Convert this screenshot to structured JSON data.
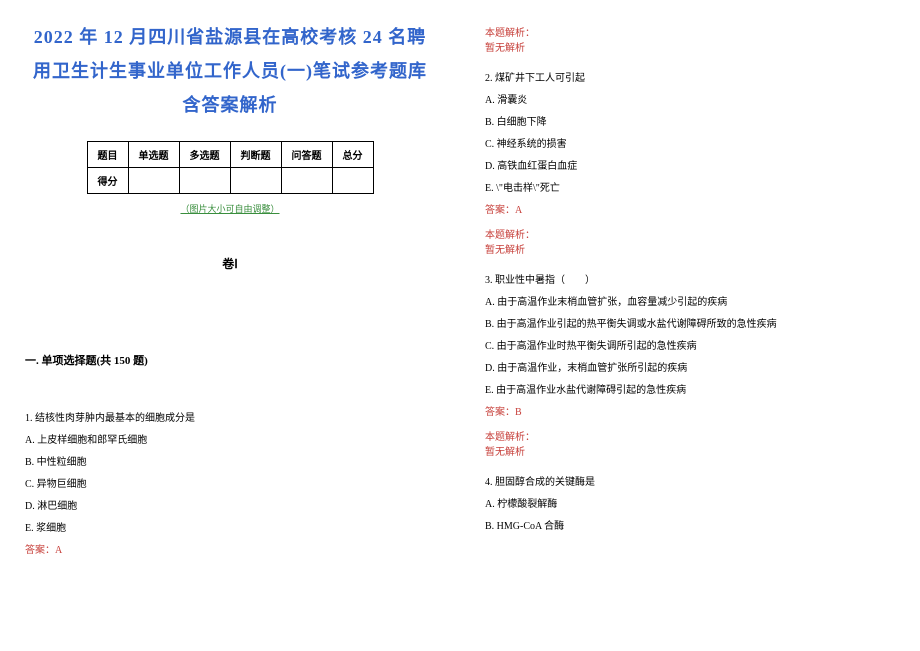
{
  "title_line1": "2022 年 12 月四川省盐源县在高校考核 24 名聘",
  "title_line2": "用卫生计生事业单位工作人员(一)笔试参考题库",
  "title_line3": "含答案解析",
  "table_headers": [
    "题目",
    "单选题",
    "多选题",
    "判断题",
    "问答题",
    "总分"
  ],
  "table_row_label": "得分",
  "img_note": "（图片大小可自由调整）",
  "volume_label": "卷Ⅰ",
  "section_label": "一. 单项选择题(共 150 题)",
  "q1": {
    "text": "1. 结核性肉芽肿内最基本的细胞成分是",
    "opts": [
      "A. 上皮样细胞和郎罕氏细胞",
      "B. 中性粒细胞",
      "C. 异物巨细胞",
      "D. 淋巴细胞",
      "E. 浆细胞"
    ],
    "answer": "答案：A"
  },
  "q2": {
    "analysis_label": "本题解析：",
    "analysis_text": "暂无解析",
    "text": "2. 煤矿井下工人可引起",
    "opts": [
      "A. 滑囊炎",
      "B. 白细胞下降",
      "C. 神经系统的损害",
      "D. 高铁血红蛋白血症",
      "E. \\\"电击样\\\"死亡"
    ],
    "answer": "答案：A",
    "analysis_label2": "本题解析：",
    "analysis_text2": "暂无解析"
  },
  "q3": {
    "text": "3. 职业性中暑指（　　）",
    "opts": [
      "A. 由于高温作业末梢血管扩张，血容量减少引起的疾病",
      "B. 由于高温作业引起的热平衡失调或水盐代谢障碍所致的急性疾病",
      "C. 由于高温作业时热平衡失调所引起的急性疾病",
      "D. 由于高温作业，末梢血管扩张所引起的疾病",
      "E. 由于高温作业水盐代谢障碍引起的急性疾病"
    ],
    "answer": "答案：B",
    "analysis_label": "本题解析：",
    "analysis_text": "暂无解析"
  },
  "q4": {
    "text": "4. 胆固醇合成的关键酶是",
    "opts": [
      "A. 柠檬酸裂解酶",
      "B. HMG-CoA 合酶"
    ]
  }
}
